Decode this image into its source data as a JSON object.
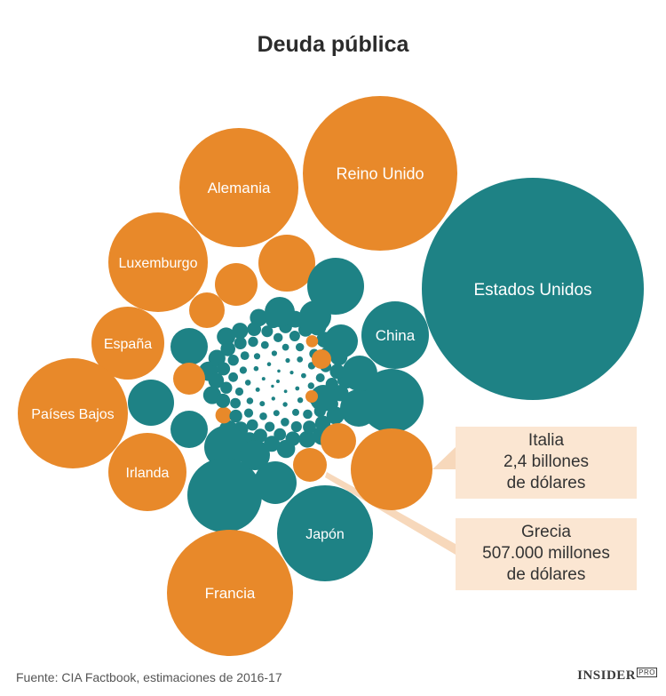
{
  "title": "Deuda pública",
  "colors": {
    "orange": "#E8892A",
    "teal": "#1E8285",
    "callout_bg": "#FBE6D2",
    "leader": "#F7D8BB"
  },
  "chart_data": {
    "type": "bubble",
    "title": "Deuda pública",
    "labeled_bubbles": [
      {
        "label": "Estados Unidos",
        "color": "teal"
      },
      {
        "label": "Reino Unido",
        "color": "orange"
      },
      {
        "label": "Alemania",
        "color": "orange"
      },
      {
        "label": "Luxemburgo",
        "color": "orange"
      },
      {
        "label": "China",
        "color": "teal"
      },
      {
        "label": "España",
        "color": "orange"
      },
      {
        "label": "Países Bajos",
        "color": "orange"
      },
      {
        "label": "Irlanda",
        "color": "orange"
      },
      {
        "label": "Japón",
        "color": "teal"
      },
      {
        "label": "Francia",
        "color": "orange"
      }
    ],
    "callouts": [
      {
        "lines": [
          "Italia",
          "2,4 billones",
          "de dólares"
        ]
      },
      {
        "lines": [
          "Grecia",
          "507.000 millones",
          "de dólares"
        ]
      }
    ]
  },
  "source": "Fuente: CIA Factbook, estimaciones de 2016-17",
  "logo": {
    "name": "INSIDER",
    "suffix": "PRO"
  }
}
